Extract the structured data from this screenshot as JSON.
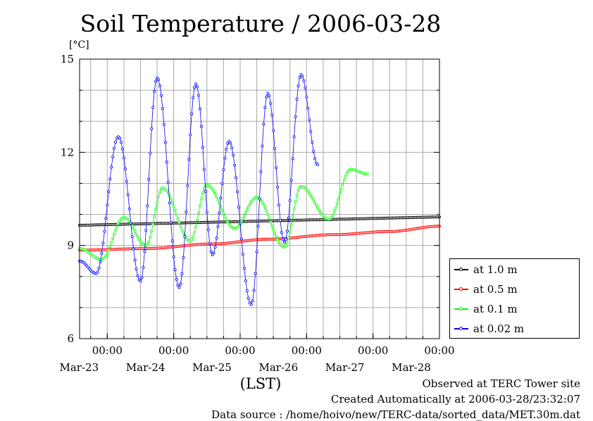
{
  "header": {
    "title": "Soil Temperature / 2006-03-28",
    "unit": "[°C]",
    "xaxis_label": "(LST)"
  },
  "footer": {
    "observed": "Observed at TERC Tower site",
    "created": "Created Automatically at 2006-03-28/23:32:07",
    "source": "Data source : /home/hoivo/new/TERC-data/sorted_data/MET.30m.dat"
  },
  "chart_data": {
    "type": "line",
    "title": "Soil Temperature / 2006-03-28",
    "ylabel": "[°C]",
    "xlabel": "(LST)",
    "x_unit": "hours from 2006-03-22 00:00 LST",
    "xlim": [
      14,
      144
    ],
    "ylim": [
      6,
      15
    ],
    "yticks": [
      "6",
      "9",
      "12",
      "15"
    ],
    "xticks": [
      {
        "x": 24,
        "time": "00:00",
        "date": "Mar-23"
      },
      {
        "x": 48,
        "time": "00:00",
        "date": "Mar-24"
      },
      {
        "x": 72,
        "time": "00:00",
        "date": "Mar-25"
      },
      {
        "x": 96,
        "time": "00:00",
        "date": "Mar-26"
      },
      {
        "x": 120,
        "time": "00:00",
        "date": "Mar-27"
      },
      {
        "x": 144,
        "time": "00:00",
        "date": "Mar-28"
      }
    ],
    "grid": true,
    "legend_position": "right",
    "series": [
      {
        "name": "at 1.0 m",
        "color": "#000000",
        "points": [
          [
            14,
            9.65
          ],
          [
            144,
            9.92
          ]
        ]
      },
      {
        "name": "at 0.5 m",
        "color": "#ff0000",
        "points": [
          [
            14,
            8.85
          ],
          [
            38,
            8.9
          ],
          [
            62,
            9.05
          ],
          [
            82,
            9.2
          ],
          [
            106,
            9.35
          ],
          [
            126,
            9.45
          ],
          [
            144,
            9.62
          ]
        ]
      },
      {
        "name": "at 0.1 m",
        "color": "#00ff00",
        "points": [
          [
            14,
            8.9
          ],
          [
            22,
            8.55
          ],
          [
            30,
            9.9
          ],
          [
            38,
            9.0
          ],
          [
            44,
            10.85
          ],
          [
            54,
            9.15
          ],
          [
            60,
            10.95
          ],
          [
            70,
            9.55
          ],
          [
            78,
            10.55
          ],
          [
            88,
            8.95
          ],
          [
            94,
            10.9
          ],
          [
            104,
            9.85
          ],
          [
            112,
            11.45
          ],
          [
            118,
            11.3
          ]
        ]
      },
      {
        "name": "at 0.02 m",
        "color": "#0000ff",
        "points": [
          [
            14,
            8.5
          ],
          [
            20,
            8.1
          ],
          [
            28,
            12.5
          ],
          [
            36,
            7.85
          ],
          [
            42,
            14.4
          ],
          [
            50,
            7.65
          ],
          [
            56,
            14.2
          ],
          [
            62,
            8.7
          ],
          [
            68,
            12.35
          ],
          [
            76,
            7.1
          ],
          [
            82,
            13.9
          ],
          [
            88,
            9.1
          ],
          [
            94,
            14.5
          ],
          [
            100,
            11.6
          ]
        ]
      }
    ]
  }
}
